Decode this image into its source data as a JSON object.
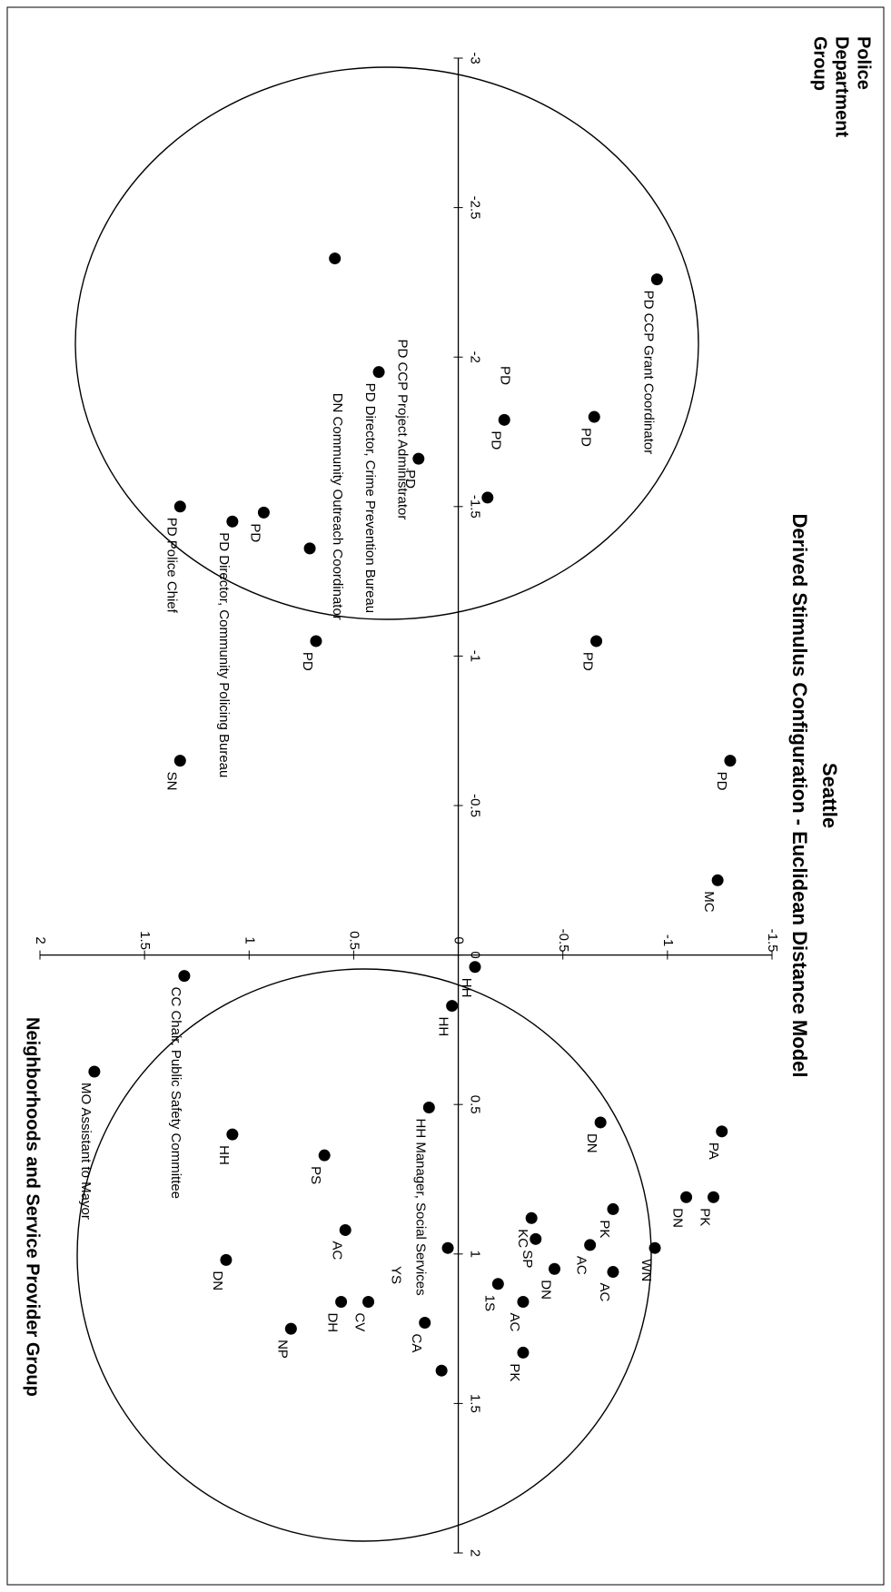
{
  "chart_data": {
    "type": "scatter",
    "title": "Seattle",
    "subtitle": "Derived Stimulus Configuration - Euclidean Distance Model",
    "group_labels": {
      "police": "Police Department Group",
      "neighborhoods": "Neighborhoods and Service Provider Group"
    },
    "xlim": [
      -3,
      2
    ],
    "ylim": [
      -1.5,
      2
    ],
    "x_ticks": [
      "-3",
      "-2.5",
      "-2",
      "-1.5",
      "-1",
      "-0.5",
      "0",
      "0.5",
      "1",
      "1.5",
      "2"
    ],
    "y_ticks": [
      "-1.5",
      "-1",
      "-0.5",
      "0",
      "0.5",
      "1",
      "1.5",
      "2"
    ],
    "points": [
      {
        "x": -2.33,
        "y": 0.59,
        "label": ""
      },
      {
        "x": -2.26,
        "y": -0.95,
        "label": "PD CCP Grant Coordinator"
      },
      {
        "x": -1.95,
        "y": 0.38,
        "label": "PD Director, Crime Prevention Bureau"
      },
      {
        "x": -1.8,
        "y": -0.65,
        "label": "PD"
      },
      {
        "x": -1.79,
        "y": -0.22,
        "label": "PD"
      },
      {
        "x": -1.66,
        "y": 0.19,
        "label": "PD"
      },
      {
        "x": -1.53,
        "y": -0.14,
        "label": ""
      },
      {
        "x": -1.5,
        "y": 1.33,
        "label": "PD Police Chief"
      },
      {
        "x": -1.48,
        "y": 0.93,
        "label": "PD"
      },
      {
        "x": -1.45,
        "y": 1.08,
        "label": "PD Director, Community Policing Bureau"
      },
      {
        "x": -1.36,
        "y": 0.71,
        "label": ""
      },
      {
        "x": -1.05,
        "y": -0.66,
        "label": "PD"
      },
      {
        "x": -1.05,
        "y": 0.68,
        "label": "PD"
      },
      {
        "x": -0.65,
        "y": 1.33,
        "label": "SN"
      },
      {
        "x": -0.65,
        "y": -1.3,
        "label": "PD"
      },
      {
        "x": -0.25,
        "y": -1.24,
        "label": "MC"
      },
      {
        "x": 0.04,
        "y": -0.08,
        "label": "HH"
      },
      {
        "x": 0.07,
        "y": 1.31,
        "label": "CC Chair, Public Safety Committee"
      },
      {
        "x": 0.17,
        "y": 0.03,
        "label": "HH"
      },
      {
        "x": 0.39,
        "y": 1.74,
        "label": "MO Assistant to Mayor"
      },
      {
        "x": 0.51,
        "y": 0.14,
        "label": "HH Manager, Social Services"
      },
      {
        "x": 0.56,
        "y": -0.68,
        "label": "DN"
      },
      {
        "x": 0.59,
        "y": -1.26,
        "label": "PA"
      },
      {
        "x": 0.6,
        "y": 1.08,
        "label": "HH"
      },
      {
        "x": 0.67,
        "y": 0.64,
        "label": "PS"
      },
      {
        "x": 0.81,
        "y": -1.22,
        "label": "PK"
      },
      {
        "x": 0.81,
        "y": -1.09,
        "label": "DN"
      },
      {
        "x": 0.85,
        "y": -0.74,
        "label": "PK"
      },
      {
        "x": 0.88,
        "y": -0.35,
        "label": "KC"
      },
      {
        "x": 0.92,
        "y": 0.54,
        "label": "AC"
      },
      {
        "x": 0.97,
        "y": -0.63,
        "label": "AC"
      },
      {
        "x": 0.98,
        "y": -0.94,
        "label": "WN"
      },
      {
        "x": 0.95,
        "y": -0.37,
        "label": "SP"
      },
      {
        "x": 0.98,
        "y": 0.05,
        "label": ""
      },
      {
        "x": 1.02,
        "y": 1.11,
        "label": "DN"
      },
      {
        "x": 1.05,
        "y": -0.46,
        "label": "DN"
      },
      {
        "x": 1.06,
        "y": -0.74,
        "label": "AC"
      },
      {
        "x": 1.1,
        "y": -0.19,
        "label": "1S"
      },
      {
        "x": 1.16,
        "y": -0.31,
        "label": "AC"
      },
      {
        "x": 1.16,
        "y": 0.43,
        "label": "CV"
      },
      {
        "x": 1.16,
        "y": 0.56,
        "label": "DH"
      },
      {
        "x": 1.23,
        "y": 0.16,
        "label": "CA"
      },
      {
        "x": 1.25,
        "y": 0.8,
        "label": "NP"
      },
      {
        "x": 1.33,
        "y": -0.31,
        "label": "PK"
      },
      {
        "x": 1.39,
        "y": 0.08,
        "label": ""
      }
    ],
    "extra_labels": [
      {
        "x": -1.88,
        "y": 0.58,
        "text": "DN Community Outreach Coordinator"
      },
      {
        "x": -2.06,
        "y": 0.27,
        "text": "PD CCP Project Administrator"
      },
      {
        "x": -1.97,
        "y": -0.22,
        "text": "PD"
      },
      {
        "x": 1.04,
        "y": 0.3,
        "text": "YS"
      }
    ]
  }
}
